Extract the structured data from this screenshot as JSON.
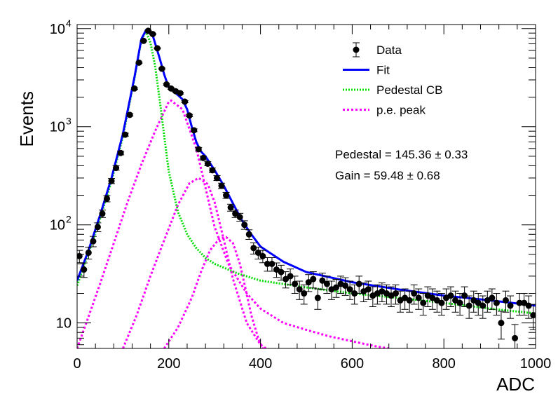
{
  "chart_data": {
    "type": "scatter",
    "xlabel": "ADC",
    "ylabel": "Events",
    "xlim": [
      0,
      1000
    ],
    "ylim": [
      5.5,
      11000
    ],
    "yscale": "log",
    "x_ticks": [
      "0",
      "200",
      "400",
      "600",
      "800",
      "1000"
    ],
    "y_ticks": [
      {
        "value": 10,
        "mantissa": "10",
        "exp": ""
      },
      {
        "value": 100,
        "mantissa": "10",
        "exp": "2"
      },
      {
        "value": 1000,
        "mantissa": "10",
        "exp": "3"
      },
      {
        "value": 10000,
        "mantissa": "10",
        "exp": "4"
      }
    ],
    "legend_position": "top-right",
    "legend": [
      "Data",
      "Fit",
      "Pedestal CB",
      "p.e. peak"
    ],
    "annotations": [
      "Pedestal = 145.36 ± 0.33",
      "Gain = 59.48 ± 0.68"
    ],
    "colors": {
      "data": "#000000",
      "fit": "#0000ff",
      "pedestal": "#00dd00",
      "pe_peak": "#ff00ff"
    },
    "data": {
      "x": [
        5,
        15,
        25,
        35,
        45,
        55,
        65,
        75,
        85,
        95,
        105,
        115,
        125,
        135,
        145,
        155,
        165,
        175,
        185,
        195,
        205,
        215,
        225,
        235,
        245,
        255,
        265,
        275,
        285,
        295,
        305,
        315,
        325,
        335,
        345,
        355,
        365,
        375,
        385,
        395,
        405,
        415,
        425,
        435,
        445,
        455,
        465,
        475,
        485,
        495,
        505,
        515,
        525,
        535,
        545,
        555,
        565,
        575,
        585,
        595,
        605,
        615,
        625,
        635,
        645,
        655,
        665,
        675,
        685,
        695,
        705,
        715,
        725,
        735,
        745,
        755,
        765,
        775,
        785,
        795,
        805,
        815,
        825,
        835,
        845,
        855,
        865,
        875,
        885,
        895,
        905,
        915,
        925,
        935,
        945,
        955,
        965,
        975,
        985,
        995
      ],
      "y": [
        48,
        35,
        52,
        68,
        95,
        130,
        185,
        280,
        380,
        540,
        830,
        1320,
        2450,
        4500,
        7500,
        9500,
        8800,
        6300,
        3900,
        2700,
        2450,
        2300,
        2200,
        1800,
        1300,
        920,
        590,
        480,
        420,
        360,
        300,
        250,
        200,
        150,
        130,
        120,
        100,
        80,
        58,
        52,
        48,
        40,
        40,
        35,
        33,
        28,
        30,
        25,
        22,
        20,
        26,
        28,
        18,
        27,
        25,
        22,
        23,
        25,
        24,
        22,
        20,
        25,
        21,
        22,
        19,
        20,
        21,
        20,
        19,
        20,
        17,
        18,
        17,
        20,
        18,
        16,
        19,
        18,
        17,
        16,
        18,
        19,
        17,
        16,
        19,
        15,
        17,
        16,
        15,
        17,
        18,
        16,
        10,
        17,
        15,
        7,
        16,
        16,
        15,
        12
      ]
    },
    "fit": {
      "x": [
        0,
        25,
        50,
        75,
        100,
        125,
        140,
        150,
        165,
        180,
        190,
        200,
        210,
        220,
        230,
        240,
        250,
        260,
        270,
        280,
        300,
        320,
        340,
        360,
        380,
        400,
        450,
        500,
        600,
        700,
        800,
        900,
        1000
      ],
      "y": [
        27,
        55,
        125,
        300,
        850,
        3200,
        7800,
        9600,
        8500,
        5000,
        3400,
        2500,
        2300,
        2100,
        1900,
        1500,
        1000,
        700,
        560,
        500,
        360,
        250,
        165,
        110,
        80,
        60,
        42,
        33,
        26,
        22,
        19,
        17,
        15
      ]
    },
    "pedestal_cb": {
      "x": [
        0,
        25,
        50,
        75,
        100,
        125,
        140,
        150,
        160,
        170,
        180,
        190,
        200,
        220,
        240,
        260,
        280,
        300,
        350,
        400,
        500,
        600,
        700,
        800,
        900,
        1000
      ],
      "y": [
        24,
        52,
        115,
        280,
        800,
        3100,
        7600,
        9400,
        7200,
        4200,
        1900,
        800,
        350,
        135,
        80,
        58,
        46,
        40,
        32,
        27,
        23,
        20,
        18,
        16,
        14,
        12.5
      ]
    },
    "pe_peaks": [
      {
        "x": [
          0,
          20,
          50,
          80,
          110,
          140,
          170,
          200,
          205,
          230,
          260,
          280,
          300,
          330,
          370,
          400,
          450,
          500,
          550,
          600,
          650,
          680
        ],
        "y": [
          5.5,
          10,
          25,
          65,
          170,
          410,
          900,
          1800,
          1850,
          1500,
          600,
          240,
          95,
          40,
          20,
          14,
          10,
          8.5,
          7.3,
          6.5,
          5.8,
          5.5
        ]
      },
      {
        "x": [
          100,
          130,
          160,
          190,
          220,
          245,
          265,
          285,
          300,
          320,
          340,
          370,
          400,
          412
        ],
        "y": [
          5.5,
          12,
          30,
          70,
          160,
          265,
          300,
          260,
          170,
          70,
          28,
          10,
          6,
          5.5
        ]
      },
      {
        "x": [
          190,
          220,
          250,
          270,
          290,
          310,
          325,
          340,
          355,
          365,
          380,
          395,
          405
        ],
        "y": [
          5.5,
          9,
          18,
          33,
          55,
          72,
          75,
          65,
          40,
          25,
          12,
          7,
          5.5
        ]
      }
    ]
  }
}
